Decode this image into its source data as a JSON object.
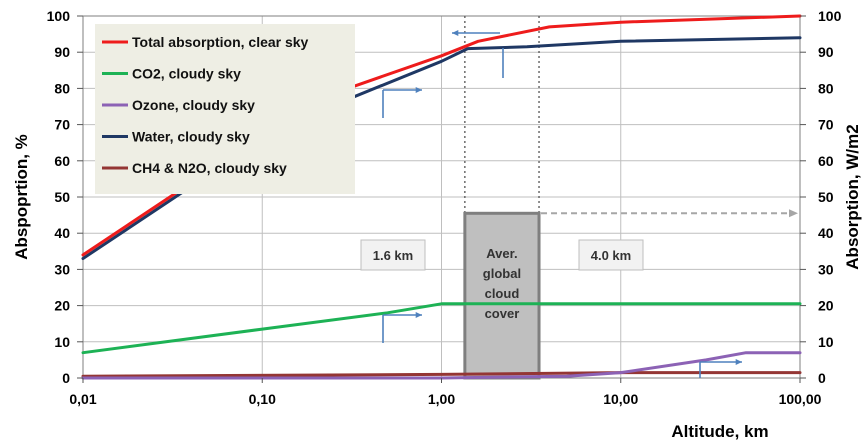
{
  "chart_data": {
    "type": "line",
    "x_scale": "log",
    "x": [
      0.01,
      0.1,
      0.3,
      1,
      1.6,
      4,
      10,
      100
    ],
    "xlim": [
      0.01,
      100
    ],
    "ylim": [
      0,
      100
    ],
    "y2lim": [
      0,
      100
    ],
    "xlabel": "Altitude, km",
    "ylabel": "Abspoprtion, %",
    "y2label": "Absorption, W/m2",
    "xticks": [
      "0,01",
      "0,10",
      "1,00",
      "10,00",
      "100,00"
    ],
    "yticks": [
      "0",
      "10",
      "20",
      "30",
      "40",
      "50",
      "60",
      "70",
      "80",
      "90",
      "100"
    ],
    "grid": true,
    "legend_position": "top-left",
    "series": [
      {
        "name": "Total absorption, clear sky",
        "color": "#ee1c1c",
        "points": [
          [
            0.01,
            34
          ],
          [
            0.1,
            67
          ],
          [
            0.3,
            80
          ],
          [
            1,
            89
          ],
          [
            1.6,
            93
          ],
          [
            4,
            97
          ],
          [
            10,
            98.3
          ],
          [
            100,
            100
          ]
        ]
      },
      {
        "name": "CO2, cloudy sky",
        "color": "#1db255",
        "points": [
          [
            0.01,
            7
          ],
          [
            0.1,
            13.5
          ],
          [
            0.5,
            18
          ],
          [
            1,
            20.5
          ],
          [
            10,
            20.5
          ],
          [
            100,
            20.5
          ]
        ]
      },
      {
        "name": "Ozone, cloudy sky",
        "color": "#8c62b5",
        "points": [
          [
            0.01,
            0
          ],
          [
            1,
            0
          ],
          [
            5,
            0.5
          ],
          [
            10,
            1.5
          ],
          [
            30,
            5
          ],
          [
            50,
            7
          ],
          [
            100,
            7
          ]
        ]
      },
      {
        "name": "Water, cloudy sky",
        "color": "#1f3864",
        "points": [
          [
            0.01,
            33
          ],
          [
            0.1,
            66
          ],
          [
            0.3,
            77
          ],
          [
            1,
            87.5
          ],
          [
            1.4,
            91
          ],
          [
            3,
            91.5
          ],
          [
            10,
            93
          ],
          [
            100,
            94
          ]
        ]
      },
      {
        "name": "CH4 & N2O, cloudy sky",
        "color": "#943634",
        "points": [
          [
            0.01,
            0.5
          ],
          [
            1,
            1
          ],
          [
            10,
            1.5
          ],
          [
            100,
            1.5
          ]
        ]
      }
    ],
    "annotations": {
      "left_altitude": "1.6 km",
      "right_altitude": "4.0 km",
      "cloud_box": [
        "Aver.",
        "global",
        "cloud",
        "cover"
      ]
    },
    "cloud_band": {
      "x_from": 1.35,
      "x_to": 3.5,
      "y_top": 45.5
    },
    "dotted_lines_x": [
      1.35,
      3.5
    ]
  }
}
